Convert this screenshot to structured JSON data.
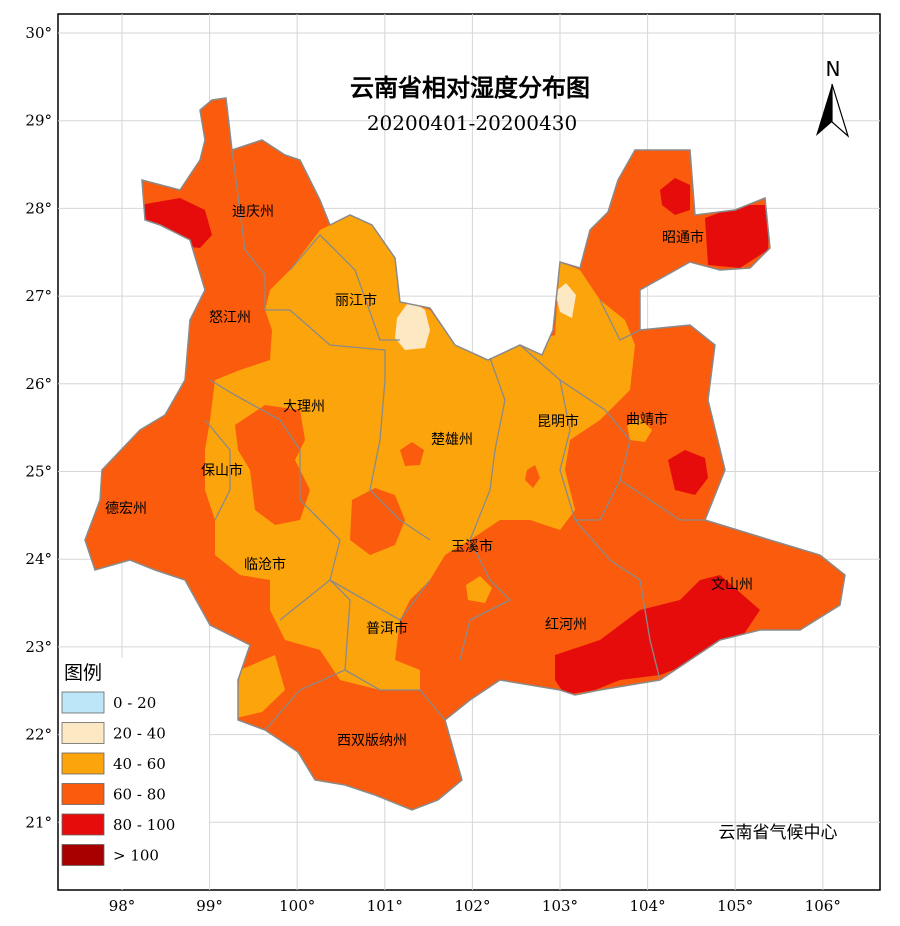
{
  "map": {
    "title": "云南省相对湿度分布图",
    "subtitle": "20200401-20200430",
    "north_label": "N",
    "credit": "云南省气候中心",
    "lat_ticks": [
      "30°",
      "29°",
      "28°",
      "27°",
      "26°",
      "25°",
      "24°",
      "23°",
      "22°",
      "21°"
    ],
    "lon_ticks": [
      "98°",
      "99°",
      "100°",
      "101°",
      "102°",
      "103°",
      "104°",
      "105°",
      "106°"
    ],
    "legend": {
      "title": "图例",
      "items": [
        {
          "label": "0 - 20",
          "color": "#bde6f8"
        },
        {
          "label": "20 - 40",
          "color": "#fde8c4"
        },
        {
          "label": "40 - 60",
          "color": "#fca40c"
        },
        {
          "label": "60 - 80",
          "color": "#fb5b0c"
        },
        {
          "label": "80 - 100",
          "color": "#e60c0c"
        },
        {
          "label": "> 100",
          "color": "#a80000"
        }
      ]
    },
    "prefectures": [
      {
        "name": "迪庆州"
      },
      {
        "name": "丽江市"
      },
      {
        "name": "怒江州"
      },
      {
        "name": "大理州"
      },
      {
        "name": "保山市"
      },
      {
        "name": "德宏州"
      },
      {
        "name": "临沧市"
      },
      {
        "name": "普洱市"
      },
      {
        "name": "西双版纳州"
      },
      {
        "name": "楚雄州"
      },
      {
        "name": "玉溪市"
      },
      {
        "name": "昆明市"
      },
      {
        "name": "曲靖市"
      },
      {
        "name": "昭通市"
      },
      {
        "name": "红河州"
      },
      {
        "name": "文山州"
      }
    ]
  }
}
